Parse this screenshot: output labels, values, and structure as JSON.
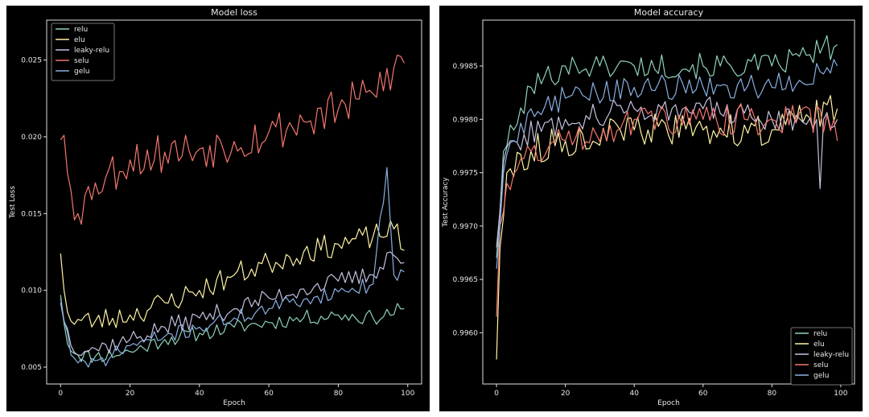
{
  "chart_data": [
    {
      "type": "line",
      "title": "Model loss",
      "xlabel": "Epoch",
      "ylabel": "Test Loss",
      "xlim": [
        -4,
        104
      ],
      "ylim": [
        0.0039,
        0.0276
      ],
      "xticks": [
        0,
        20,
        40,
        60,
        80,
        100
      ],
      "yticks": [
        0.005,
        0.01,
        0.015,
        0.02,
        0.025
      ],
      "ytick_labels": [
        "0.005",
        "0.010",
        "0.015",
        "0.020",
        "0.025"
      ],
      "legend_position": "top-left",
      "grid": false,
      "x_start": 0,
      "x_step": 1,
      "series": [
        {
          "name": "relu",
          "color": "#8fd3b9",
          "anchors": [
            [
              0,
              0.0097
            ],
            [
              2,
              0.0065
            ],
            [
              5,
              0.0058
            ],
            [
              10,
              0.0057
            ],
            [
              20,
              0.006
            ],
            [
              30,
              0.0068
            ],
            [
              40,
              0.0072
            ],
            [
              50,
              0.0076
            ],
            [
              60,
              0.0079
            ],
            [
              70,
              0.0082
            ],
            [
              80,
              0.0084
            ],
            [
              90,
              0.0082
            ],
            [
              99,
              0.0088
            ]
          ],
          "noise": 0.0005,
          "seed": 11
        },
        {
          "name": "elu",
          "color": "#fff3a3",
          "anchors": [
            [
              0,
              0.0124
            ],
            [
              1,
              0.01
            ],
            [
              3,
              0.008
            ],
            [
              10,
              0.008
            ],
            [
              20,
              0.0084
            ],
            [
              30,
              0.0092
            ],
            [
              40,
              0.01
            ],
            [
              50,
              0.011
            ],
            [
              60,
              0.0118
            ],
            [
              70,
              0.0125
            ],
            [
              80,
              0.013
            ],
            [
              90,
              0.0135
            ],
            [
              96,
              0.014
            ],
            [
              99,
              0.0126
            ]
          ],
          "noise": 0.0008,
          "seed": 23
        },
        {
          "name": "leaky-relu",
          "color": "#c7c1e0",
          "anchors": [
            [
              0,
              0.0092
            ],
            [
              3,
              0.0064
            ],
            [
              10,
              0.0062
            ],
            [
              20,
              0.0068
            ],
            [
              30,
              0.0076
            ],
            [
              40,
              0.0082
            ],
            [
              50,
              0.0088
            ],
            [
              60,
              0.0095
            ],
            [
              70,
              0.0101
            ],
            [
              80,
              0.0106
            ],
            [
              90,
              0.011
            ],
            [
              95,
              0.0125
            ],
            [
              99,
              0.0118
            ]
          ],
          "noise": 0.0006,
          "seed": 37
        },
        {
          "name": "selu",
          "color": "#f4776e",
          "anchors": [
            [
              0,
              0.0198
            ],
            [
              1,
              0.0201
            ],
            [
              3,
              0.0165
            ],
            [
              5,
              0.015
            ],
            [
              10,
              0.017
            ],
            [
              20,
              0.0185
            ],
            [
              30,
              0.019
            ],
            [
              40,
              0.0192
            ],
            [
              50,
              0.0197
            ],
            [
              60,
              0.0203
            ],
            [
              70,
              0.021
            ],
            [
              80,
              0.0218
            ],
            [
              90,
              0.0228
            ],
            [
              96,
              0.0245
            ],
            [
              99,
              0.0248
            ]
          ],
          "noise": 0.0014,
          "seed": 53
        },
        {
          "name": "gelu",
          "color": "#89b0e0",
          "anchors": [
            [
              0,
              0.0095
            ],
            [
              3,
              0.0058
            ],
            [
              8,
              0.005
            ],
            [
              15,
              0.0058
            ],
            [
              20,
              0.0064
            ],
            [
              30,
              0.007
            ],
            [
              40,
              0.0076
            ],
            [
              50,
              0.0082
            ],
            [
              60,
              0.0088
            ],
            [
              70,
              0.0094
            ],
            [
              80,
              0.0099
            ],
            [
              90,
              0.0104
            ],
            [
              94,
              0.018
            ],
            [
              96,
              0.011
            ],
            [
              99,
              0.0112
            ]
          ],
          "noise": 0.0005,
          "seed": 71
        }
      ]
    },
    {
      "type": "line",
      "title": "Model accuracy",
      "xlabel": "Epoch",
      "ylabel": "Test Accuracy",
      "xlim": [
        -4,
        104
      ],
      "ylim": [
        0.99552,
        0.99893
      ],
      "xticks": [
        0,
        20,
        40,
        60,
        80,
        100
      ],
      "yticks": [
        0.996,
        0.9965,
        0.997,
        0.9975,
        0.998,
        0.9985
      ],
      "ytick_labels": [
        "0.9960",
        "0.9965",
        "0.9970",
        "0.9975",
        "0.9980",
        "0.9985"
      ],
      "legend_position": "bottom-right",
      "grid": false,
      "x_start": 0,
      "x_step": 1,
      "series": [
        {
          "name": "relu",
          "color": "#8fd3b9",
          "anchors": [
            [
              0,
              0.9967
            ],
            [
              2,
              0.9977
            ],
            [
              5,
              0.9979
            ],
            [
              10,
              0.9983
            ],
            [
              20,
              0.9985
            ],
            [
              30,
              0.9985
            ],
            [
              40,
              0.9985
            ],
            [
              60,
              0.9985
            ],
            [
              80,
              0.9985
            ],
            [
              90,
              0.9986
            ],
            [
              99,
              0.9987
            ]
          ],
          "noise": 0.00012,
          "seed": 101
        },
        {
          "name": "elu",
          "color": "#fff3a3",
          "anchors": [
            [
              0,
              0.99575
            ],
            [
              1,
              0.9968
            ],
            [
              3,
              0.9975
            ],
            [
              10,
              0.9977
            ],
            [
              20,
              0.9978
            ],
            [
              40,
              0.9979
            ],
            [
              60,
              0.9979
            ],
            [
              80,
              0.9979
            ],
            [
              99,
              0.9981
            ]
          ],
          "noise": 0.00015,
          "seed": 113
        },
        {
          "name": "leaky-relu",
          "color": "#c7c1e0",
          "anchors": [
            [
              0,
              0.9968
            ],
            [
              2,
              0.9976
            ],
            [
              5,
              0.9978
            ],
            [
              20,
              0.998
            ],
            [
              40,
              0.9981
            ],
            [
              60,
              0.9981
            ],
            [
              80,
              0.998
            ],
            [
              93,
              0.998
            ],
            [
              94,
              0.99735
            ],
            [
              95,
              0.998
            ],
            [
              99,
              0.998
            ]
          ],
          "noise": 0.00012,
          "seed": 127
        },
        {
          "name": "selu",
          "color": "#f4776e",
          "anchors": [
            [
              0,
              0.99615
            ],
            [
              1,
              0.997
            ],
            [
              3,
              0.9974
            ],
            [
              10,
              0.9977
            ],
            [
              20,
              0.9978
            ],
            [
              40,
              0.998
            ],
            [
              60,
              0.998
            ],
            [
              80,
              0.998
            ],
            [
              98,
              0.998
            ],
            [
              99,
              0.9978
            ]
          ],
          "noise": 0.00015,
          "seed": 131
        },
        {
          "name": "gelu",
          "color": "#89b0e0",
          "anchors": [
            [
              0,
              0.9966
            ],
            [
              2,
              0.9975
            ],
            [
              5,
              0.9978
            ],
            [
              10,
              0.9981
            ],
            [
              20,
              0.9982
            ],
            [
              40,
              0.9983
            ],
            [
              60,
              0.9983
            ],
            [
              80,
              0.9983
            ],
            [
              99,
              0.9985
            ]
          ],
          "noise": 0.00012,
          "seed": 149
        }
      ]
    }
  ]
}
